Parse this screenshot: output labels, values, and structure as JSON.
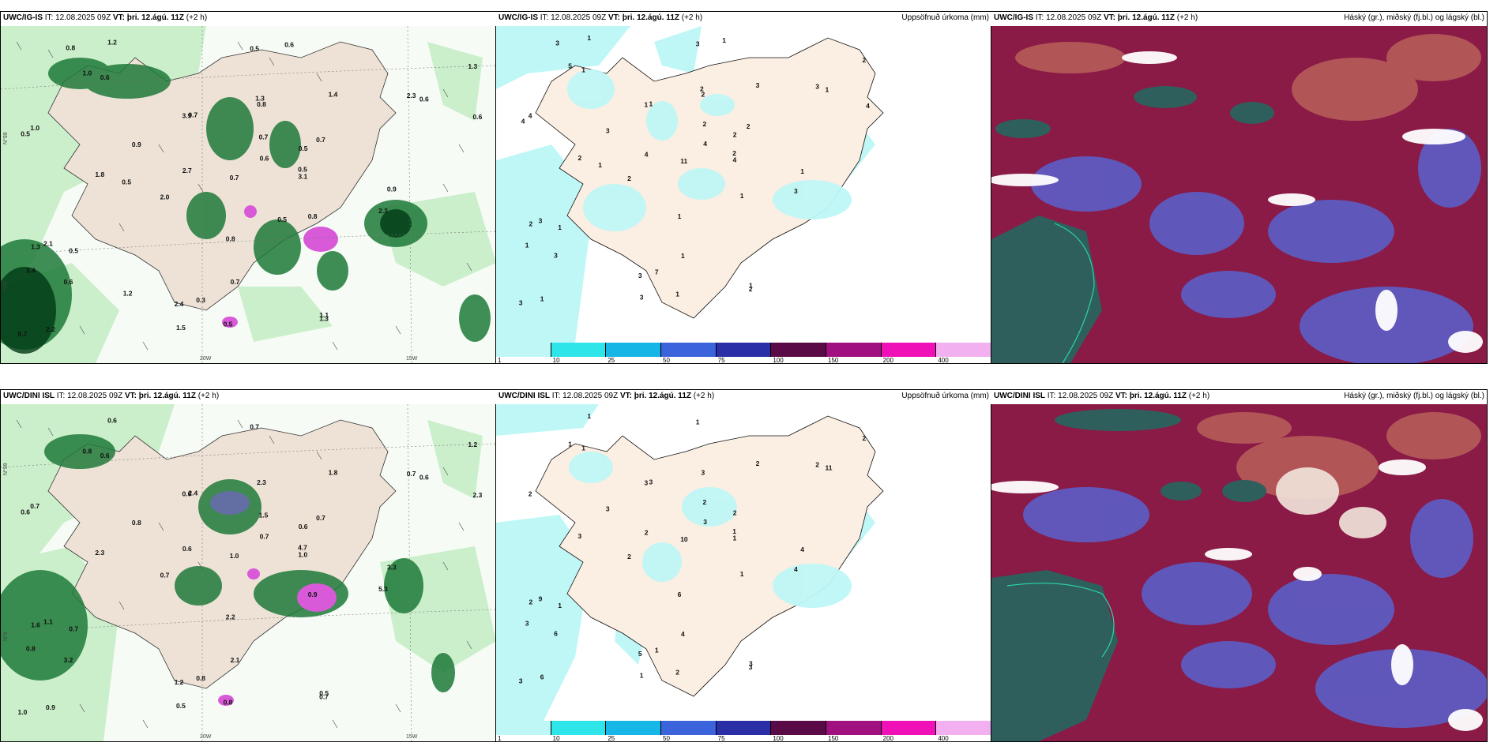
{
  "panels": {
    "p1": {
      "model": "UWC/IG-IS",
      "it": " IT: 12.08.2025 09Z ",
      "vt_label": "VT:",
      "vt": " þri. 12.ágú. 11Z",
      "lead": " (+2 h)",
      "right": ""
    },
    "p2": {
      "model": "UWC/IG-IS",
      "it": " IT: 12.08.2025 09Z ",
      "vt_label": "VT:",
      "vt": " þri. 12.ágú. 11Z",
      "lead": " (+2 h)",
      "right": "Uppsöfnuð úrkoma (mm)"
    },
    "p3": {
      "model": "UWC/IG-IS",
      "it": " IT: 12.08.2025 09Z ",
      "vt_label": "VT:",
      "vt": " þri. 12.ágú. 11Z",
      "lead": " (+2 h)",
      "right": "Háský (gr.), miðský (fj.bl.) og lágský (bl.)"
    },
    "p4": {
      "model": "UWC/DINI ISL",
      "it": " IT: 12.08.2025 09Z ",
      "vt_label": "VT:",
      "vt": " þri. 12.ágú. 11Z",
      "lead": " (+2 h)",
      "right": ""
    },
    "p5": {
      "model": "UWC/DINI ISL",
      "it": " IT: 12.08.2025 09Z ",
      "vt_label": "VT:",
      "vt": " þri. 12.ágú. 11Z",
      "lead": " (+2 h)",
      "right": "Uppsöfnuð úrkoma (mm)"
    },
    "p6": {
      "model": "UWC/DINI ISL",
      "it": " IT: 12.08.2025 09Z ",
      "vt_label": "VT:",
      "vt": " þri. 12.ágú. 11Z",
      "lead": " (+2 h)",
      "right": "Háský (gr.), miðský (fj.bl.) og lágský (bl.)"
    }
  },
  "axis_labels": {
    "lat": "N°99",
    "lat2": "N°9",
    "lon_w20": "20W",
    "lon_w15": "15W"
  },
  "colorbar": {
    "ticks": [
      "1",
      "10",
      "25",
      "50",
      "75",
      "100",
      "150",
      "200",
      "400"
    ],
    "colors": [
      "#bff7f7",
      "#2ee6ea",
      "#16b6e6",
      "#3a63dc",
      "#2a2fa8",
      "#5a0a46",
      "#a0107e",
      "#f010b8",
      "#f3b0f0"
    ]
  },
  "top_left_values": [
    "0.7",
    "0.7",
    "0.6",
    "0.5",
    "0.8",
    "0.9",
    "1.0",
    "1.1",
    "1.2",
    "0.5",
    "2.3",
    "2.7",
    "1.8",
    "2.4",
    "2.2",
    "2.1",
    "1.4",
    "1.3",
    "3.1",
    "0.6",
    "0.8",
    "1.0",
    "1.3",
    "0.9",
    "0.7",
    "0.5",
    "3.4",
    "0.6",
    "1.5",
    "0.7",
    "1.3",
    "0.8",
    "0.5",
    "0.6",
    "0.7",
    "2.0",
    "3.9",
    "0.5",
    "0.3",
    "2.3",
    "0.6",
    "0.5",
    "0.7",
    "0.5",
    "1.3",
    "0.8",
    "0.6",
    "1.2",
    "0.5"
  ],
  "top_mid_values": [
    "2",
    "1",
    "1",
    "1",
    "1",
    "3",
    "4",
    "1",
    "1",
    "2",
    "3",
    "4",
    "2",
    "3",
    "1",
    "3",
    "3",
    "2",
    "4",
    "3",
    "1",
    "5",
    "2",
    "1",
    "3",
    "2",
    "1",
    "4",
    "3",
    "1",
    "2",
    "2",
    "1",
    "1",
    "11",
    "2",
    "1",
    "3",
    "7",
    "3",
    "4",
    "4",
    "2",
    "1",
    "2",
    "3",
    "1"
  ],
  "bot_left_values": [
    "1.5",
    "2.4",
    "0.6",
    "0.7",
    "0.9",
    "0.8",
    "0.7",
    "0.5",
    "0.6",
    "4.7",
    "5.3",
    "0.6",
    "2.3",
    "1.2",
    "0.9",
    "1.1",
    "1.8",
    "0.7",
    "1.0",
    "3.2",
    "2.2",
    "0.8",
    "1.2",
    "3.3",
    "1.0",
    "0.6",
    "0.8",
    "0.7",
    "0.5",
    "2.1",
    "1.6",
    "2.3",
    "0.8",
    "0.6",
    "1.0",
    "0.7",
    "0.6",
    "0.7",
    "0.8",
    "0.7",
    "2.3",
    "0.6",
    "0.7"
  ],
  "bot_mid_values": [
    "2",
    "3",
    "1",
    "1",
    "1",
    "3",
    "2",
    "3",
    "1",
    "1",
    "4",
    "2",
    "3",
    "5",
    "6",
    "9",
    "2",
    "3",
    "1",
    "6",
    "6",
    "1",
    "2",
    "4",
    "3",
    "2",
    "3",
    "3",
    "1",
    "4",
    "2",
    "3",
    "2",
    "11",
    "10",
    "2",
    "3",
    "1",
    "1",
    "2"
  ]
}
